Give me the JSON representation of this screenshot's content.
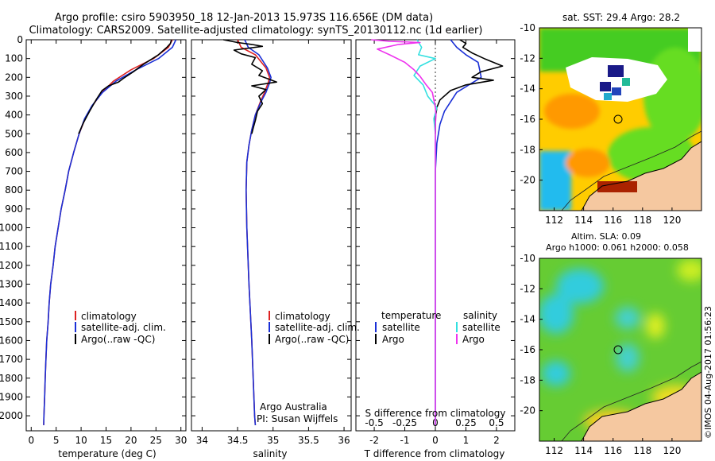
{
  "header": {
    "line1": "Argo profile: csiro 5903950_18 12-Jan-2013 15.973S 116.656E (DM data)",
    "line2": "Climatology: CARS2009. Satellite-adjusted climatology: synTS_20130112.nc (1d earlier)"
  },
  "colors": {
    "clim": "#dd2222",
    "sat": "#1a2fd6",
    "argo": "#000000",
    "sal_sat": "#33e0e0",
    "sal_argo": "#ee33ee",
    "land": "#f5c8a0",
    "nodata": "#ffffff"
  },
  "legend": {
    "clim": "climatology",
    "sat": "satellite-adj. clim.",
    "argo": "Argo(..raw -QC)"
  },
  "diff_legend": {
    "temperature": "temperature",
    "salinity": "salinity",
    "satellite": "satellite",
    "argo": "Argo"
  },
  "credits": {
    "line1": "Argo Australia",
    "line2": "PI: Susan Wijffels"
  },
  "diff_title": "S difference from climatology",
  "sst_map": {
    "title": "sat. SST: 29.4 Argo: 28.2"
  },
  "sla_map": {
    "title1": "Altim. SLA: 0.09",
    "title2": "Argo h1000: 0.061 h2000: 0.058"
  },
  "stamp": "©IMOS 04-Aug-2017 01:56:23",
  "chart_data": [
    {
      "id": "temperature",
      "type": "line",
      "xlabel": "temperature (deg C)",
      "xlim": [
        -1,
        31
      ],
      "ylim": [
        2080,
        0
      ],
      "xticks": [
        0,
        5,
        10,
        15,
        20,
        25,
        30
      ],
      "yticks": [
        0,
        100,
        200,
        300,
        400,
        500,
        600,
        700,
        800,
        900,
        1000,
        1100,
        1200,
        1300,
        1400,
        1500,
        1600,
        1700,
        1800,
        1900,
        2000
      ],
      "series": [
        {
          "name": "climatology",
          "color": "#dd2222",
          "points": [
            [
              28.3,
              0
            ],
            [
              27.5,
              40
            ],
            [
              24.5,
              100
            ],
            [
              20,
              160
            ],
            [
              16.5,
              220
            ],
            [
              14.2,
              280
            ],
            [
              12.3,
              350
            ],
            [
              10.8,
              420
            ],
            [
              9.6,
              500
            ],
            [
              8.5,
              600
            ],
            [
              7.5,
              700
            ],
            [
              6.8,
              800
            ],
            [
              6,
              900
            ],
            [
              5.4,
              1000
            ],
            [
              4.8,
              1100
            ],
            [
              4.4,
              1200
            ],
            [
              3.9,
              1300
            ],
            [
              3.6,
              1400
            ],
            [
              3.4,
              1500
            ],
            [
              3.1,
              1600
            ],
            [
              2.95,
              1700
            ],
            [
              2.8,
              1800
            ],
            [
              2.7,
              1900
            ],
            [
              2.55,
              2000
            ],
            [
              2.5,
              2050
            ]
          ]
        },
        {
          "name": "satellite-adj. clim.",
          "color": "#1a2fd6",
          "points": [
            [
              29,
              0
            ],
            [
              28.3,
              40
            ],
            [
              25.5,
              100
            ],
            [
              21,
              160
            ],
            [
              17,
              220
            ],
            [
              14.3,
              280
            ],
            [
              12.2,
              350
            ],
            [
              10.7,
              420
            ],
            [
              9.6,
              500
            ],
            [
              8.5,
              600
            ],
            [
              7.5,
              700
            ],
            [
              6.8,
              800
            ],
            [
              6,
              900
            ],
            [
              5.4,
              1000
            ],
            [
              4.8,
              1100
            ],
            [
              4.4,
              1200
            ],
            [
              3.9,
              1300
            ],
            [
              3.6,
              1400
            ],
            [
              3.4,
              1500
            ],
            [
              3.1,
              1600
            ],
            [
              2.95,
              1700
            ],
            [
              2.8,
              1800
            ],
            [
              2.7,
              1900
            ],
            [
              2.55,
              2000
            ],
            [
              2.5,
              2050
            ]
          ]
        },
        {
          "name": "Argo(..raw -QC)",
          "color": "#000000",
          "points": [
            [
              28.1,
              0
            ],
            [
              27.9,
              20
            ],
            [
              27.2,
              40
            ],
            [
              25.5,
              80
            ],
            [
              22.5,
              130
            ],
            [
              20.5,
              170
            ],
            [
              18.5,
              205
            ],
            [
              17.5,
              225
            ],
            [
              15.5,
              245
            ],
            [
              14.2,
              270
            ],
            [
              13,
              320
            ],
            [
              11.7,
              380
            ],
            [
              10.5,
              440
            ],
            [
              9.5,
              500
            ]
          ]
        }
      ]
    },
    {
      "id": "salinity",
      "type": "line",
      "xlabel": "salinity",
      "xlim": [
        33.85,
        36.1
      ],
      "ylim": [
        2080,
        0
      ],
      "xticks": [
        34,
        34.5,
        35,
        35.5,
        36
      ],
      "series": [
        {
          "name": "climatology",
          "color": "#dd2222",
          "points": [
            [
              34.5,
              0
            ],
            [
              34.55,
              40
            ],
            [
              34.75,
              80
            ],
            [
              34.9,
              150
            ],
            [
              34.95,
              200
            ],
            [
              34.93,
              230
            ],
            [
              34.88,
              280
            ],
            [
              34.82,
              330
            ],
            [
              34.75,
              400
            ],
            [
              34.7,
              480
            ],
            [
              34.66,
              560
            ],
            [
              34.63,
              650
            ],
            [
              34.62,
              800
            ],
            [
              34.63,
              1000
            ],
            [
              34.66,
              1300
            ],
            [
              34.7,
              1600
            ],
            [
              34.72,
              1800
            ],
            [
              34.74,
              2000
            ],
            [
              34.75,
              2050
            ]
          ]
        },
        {
          "name": "satellite-adj. clim.",
          "color": "#1a2fd6",
          "points": [
            [
              34.6,
              0
            ],
            [
              34.65,
              40
            ],
            [
              34.8,
              80
            ],
            [
              34.92,
              150
            ],
            [
              34.97,
              200
            ],
            [
              34.95,
              230
            ],
            [
              34.9,
              280
            ],
            [
              34.83,
              330
            ],
            [
              34.75,
              400
            ],
            [
              34.7,
              480
            ],
            [
              34.66,
              560
            ],
            [
              34.63,
              650
            ],
            [
              34.62,
              800
            ],
            [
              34.63,
              1000
            ],
            [
              34.66,
              1300
            ],
            [
              34.7,
              1600
            ],
            [
              34.72,
              1800
            ],
            [
              34.74,
              2000
            ],
            [
              34.75,
              2050
            ]
          ]
        },
        {
          "name": "Argo(..raw -QC)",
          "color": "#000000",
          "points": [
            [
              34.3,
              0
            ],
            [
              34.5,
              15
            ],
            [
              34.7,
              25
            ],
            [
              34.85,
              35
            ],
            [
              34.45,
              55
            ],
            [
              34.55,
              75
            ],
            [
              34.75,
              95
            ],
            [
              34.7,
              130
            ],
            [
              34.85,
              165
            ],
            [
              34.8,
              190
            ],
            [
              35.05,
              225
            ],
            [
              34.7,
              245
            ],
            [
              34.9,
              265
            ],
            [
              34.8,
              300
            ],
            [
              34.85,
              340
            ],
            [
              34.78,
              380
            ],
            [
              34.75,
              430
            ],
            [
              34.72,
              470
            ],
            [
              34.7,
              500
            ]
          ]
        }
      ]
    },
    {
      "id": "difference",
      "type": "line",
      "xlabel": "T difference from climatology",
      "xlabel_top": "S difference from climatology",
      "xlim": [
        -2.6,
        2.6
      ],
      "ylim": [
        2080,
        0
      ],
      "xticks": [
        -2,
        -1,
        0,
        1,
        2
      ],
      "xticks_s": [
        "-0.5",
        "-0.25",
        "0",
        "0.25",
        "0.5"
      ],
      "xticks_s_at": [
        -2,
        -1,
        0,
        1,
        2
      ],
      "series": [
        {
          "name": "temperature satellite",
          "color": "#1a2fd6",
          "points": [
            [
              0.5,
              0
            ],
            [
              0.7,
              40
            ],
            [
              1.0,
              80
            ],
            [
              1.4,
              120
            ],
            [
              1.45,
              160
            ],
            [
              1.5,
              200
            ],
            [
              0.7,
              280
            ],
            [
              0.5,
              330
            ],
            [
              0.3,
              380
            ],
            [
              0.15,
              450
            ],
            [
              0.05,
              550
            ],
            [
              0,
              700
            ],
            [
              0,
              2050
            ]
          ]
        },
        {
          "name": "temperature Argo",
          "color": "#000000",
          "points": [
            [
              0.8,
              0
            ],
            [
              1.0,
              20
            ],
            [
              0.9,
              40
            ],
            [
              1.2,
              70
            ],
            [
              1.6,
              100
            ],
            [
              2.2,
              140
            ],
            [
              1.5,
              170
            ],
            [
              1.2,
              200
            ],
            [
              1.9,
              215
            ],
            [
              1.0,
              240
            ],
            [
              0.5,
              270
            ],
            [
              0.15,
              320
            ],
            [
              0.05,
              360
            ],
            [
              0,
              420
            ],
            [
              0,
              500
            ]
          ]
        },
        {
          "name": "salinity satellite",
          "color": "#33e0e0",
          "points": [
            [
              -0.6,
              0
            ],
            [
              -0.45,
              40
            ],
            [
              -0.55,
              80
            ],
            [
              0,
              100
            ],
            [
              -0.5,
              140
            ],
            [
              -0.7,
              190
            ],
            [
              -0.4,
              240
            ],
            [
              -0.25,
              300
            ],
            [
              0.05,
              360
            ],
            [
              -0.05,
              420
            ],
            [
              0,
              500
            ],
            [
              0,
              2050
            ]
          ]
        },
        {
          "name": "salinity Argo",
          "color": "#ee33ee",
          "points": [
            [
              -2.1,
              0
            ],
            [
              -1.5,
              8
            ],
            [
              -0.5,
              15
            ],
            [
              -1.2,
              25
            ],
            [
              -1.9,
              50
            ],
            [
              -1.5,
              80
            ],
            [
              -1.0,
              120
            ],
            [
              -0.7,
              160
            ],
            [
              -0.5,
              195
            ],
            [
              -0.3,
              240
            ],
            [
              -0.1,
              280
            ],
            [
              -0.05,
              320
            ],
            [
              0,
              360
            ],
            [
              0.02,
              400
            ],
            [
              0,
              450
            ],
            [
              0,
              2050
            ]
          ]
        }
      ]
    },
    {
      "id": "sst_map",
      "type": "heatmap",
      "title": "sat. SST: 29.4 Argo: 28.2",
      "xticks": [
        112,
        114,
        116,
        118,
        120
      ],
      "yticks": [
        -10,
        -12,
        -14,
        -16,
        -18,
        -20
      ],
      "xlim": [
        111,
        122
      ],
      "ylim": [
        -22,
        -10
      ],
      "float_position": [
        116.656,
        -15.973
      ]
    },
    {
      "id": "sla_map",
      "type": "heatmap",
      "title": "Altim. SLA: 0.09",
      "subtitle": "Argo h1000: 0.061 h2000: 0.058",
      "xticks": [
        112,
        114,
        116,
        118,
        120
      ],
      "yticks": [
        -10,
        -12,
        -14,
        -16,
        -18,
        -20
      ],
      "xlim": [
        111,
        122
      ],
      "ylim": [
        -22,
        -10
      ],
      "float_position": [
        116.656,
        -15.973
      ]
    }
  ]
}
